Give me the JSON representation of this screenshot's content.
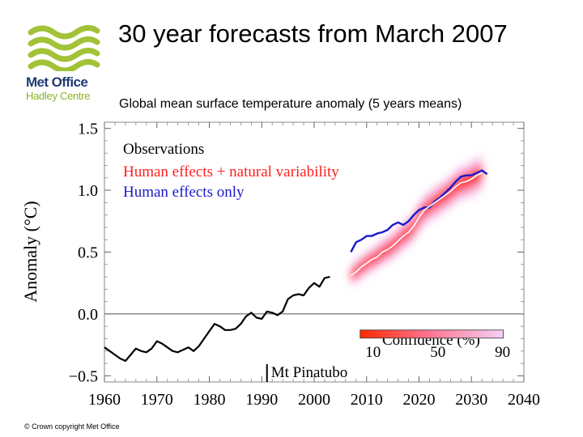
{
  "header": {
    "title": "30 year forecasts from March 2007",
    "logo_name": "Met Office",
    "logo_sub": "Hadley Centre"
  },
  "footer": {
    "copyright": "© Crown copyright   Met Office"
  },
  "chart_data": {
    "type": "line",
    "title": "Global mean surface temperature anomaly (5 years means)",
    "xlabel": "",
    "ylabel": "Anomaly (°C)",
    "xlim": [
      1960,
      2040
    ],
    "ylim": [
      -0.55,
      1.55
    ],
    "xticks": [
      1960,
      1970,
      1980,
      1990,
      2000,
      2010,
      2020,
      2030,
      2040
    ],
    "yticks": [
      1.5,
      1.0,
      0.5,
      0.0,
      -0.5
    ],
    "ytick_labels": [
      "1.5",
      "1.0",
      "0.5",
      "0.0",
      "−0.5"
    ],
    "zero_line": 0.0,
    "legend": [
      {
        "label": "Observations",
        "color": "#000000"
      },
      {
        "label": "Human effects + natural variability",
        "color": "#ff2020"
      },
      {
        "label": "Human effects only",
        "color": "#1a1acc"
      }
    ],
    "annotations": [
      {
        "text": "Mt Pinatubo",
        "x": 1991,
        "y": -0.55
      }
    ],
    "confidence_bar": {
      "title": "Confidence (%)",
      "ticks": [
        10,
        50,
        90
      ],
      "x_range": [
        2010,
        2035
      ],
      "y": -0.13
    },
    "series": [
      {
        "name": "Observations",
        "color": "#000000",
        "x": [
          1960,
          1961,
          1962,
          1963,
          1964,
          1965,
          1966,
          1967,
          1968,
          1969,
          1970,
          1971,
          1972,
          1973,
          1974,
          1975,
          1976,
          1977,
          1978,
          1979,
          1980,
          1981,
          1982,
          1983,
          1984,
          1985,
          1986,
          1987,
          1988,
          1989,
          1990,
          1991,
          1992,
          1993,
          1994,
          1995,
          1996,
          1997,
          1998,
          1999,
          2000,
          2001,
          2002,
          2003
        ],
        "values": [
          -0.27,
          -0.3,
          -0.33,
          -0.36,
          -0.38,
          -0.33,
          -0.28,
          -0.3,
          -0.31,
          -0.28,
          -0.22,
          -0.24,
          -0.27,
          -0.3,
          -0.31,
          -0.29,
          -0.27,
          -0.3,
          -0.26,
          -0.2,
          -0.14,
          -0.08,
          -0.1,
          -0.13,
          -0.13,
          -0.12,
          -0.08,
          -0.02,
          0.01,
          -0.03,
          -0.04,
          0.02,
          0.01,
          -0.01,
          0.02,
          0.12,
          0.15,
          0.16,
          0.15,
          0.21,
          0.25,
          0.22,
          0.29,
          0.3
        ]
      },
      {
        "name": "Human effects + natural variability",
        "color": "#ff2020",
        "center_color": "#ffffff",
        "x": [
          2007,
          2008,
          2009,
          2010,
          2011,
          2012,
          2013,
          2014,
          2015,
          2016,
          2017,
          2018,
          2019,
          2020,
          2021,
          2022,
          2023,
          2024,
          2025,
          2026,
          2027,
          2028,
          2029,
          2030,
          2031,
          2032
        ],
        "values": [
          0.31,
          0.34,
          0.38,
          0.41,
          0.44,
          0.46,
          0.5,
          0.52,
          0.55,
          0.59,
          0.63,
          0.66,
          0.71,
          0.78,
          0.84,
          0.87,
          0.9,
          0.93,
          0.96,
          0.99,
          1.03,
          1.06,
          1.07,
          1.09,
          1.12,
          1.14
        ]
      },
      {
        "name": "Human effects only",
        "color": "#1a1acc",
        "x": [
          2007,
          2008,
          2009,
          2010,
          2011,
          2012,
          2013,
          2014,
          2015,
          2016,
          2017,
          2018,
          2019,
          2020,
          2021,
          2022,
          2023,
          2024,
          2025,
          2026,
          2027,
          2028,
          2029,
          2030,
          2031,
          2032,
          2033
        ],
        "values": [
          0.5,
          0.58,
          0.6,
          0.63,
          0.63,
          0.65,
          0.66,
          0.68,
          0.72,
          0.74,
          0.72,
          0.75,
          0.8,
          0.84,
          0.86,
          0.86,
          0.91,
          0.94,
          0.98,
          1.02,
          1.07,
          1.11,
          1.12,
          1.12,
          1.14,
          1.16,
          1.13
        ]
      }
    ]
  }
}
